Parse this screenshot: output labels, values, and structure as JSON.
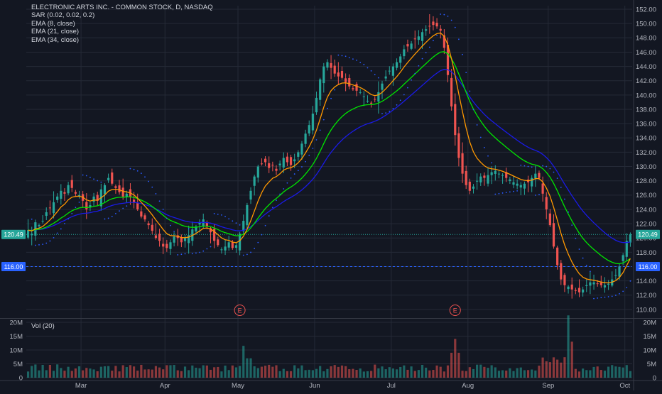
{
  "colors": {
    "background": "#131722",
    "grid": "#252a37",
    "up": "#26a69a",
    "down": "#ef5350",
    "ema8": "#ff9800",
    "ema21": "#00e600",
    "ema34": "#1a1ae6",
    "sar": "#2a5bff",
    "axis_text": "#b2b5be",
    "last_price_bg": "#26a69a",
    "level_line": "#2962ff"
  },
  "header": {
    "title": "ELECTRONIC ARTS INC. - COMMON STOCK, D, NASDAQ",
    "indicators": [
      "SAR (0.02, 0.02, 0.2)",
      "EMA (8, close)",
      "EMA (21, close)",
      "EMA (34, close)"
    ]
  },
  "volume_pane": {
    "label": "Vol (20)"
  },
  "events": [
    {
      "label": "E",
      "date": "May 3"
    },
    {
      "label": "E",
      "date": "Jul 28"
    }
  ],
  "chart_data": {
    "type": "candlestick",
    "title": "ELECTRONIC ARTS INC. - COMMON STOCK, D, NASDAQ",
    "x_ticks": [
      "Mar",
      "Apr",
      "May",
      "Jun",
      "Jul",
      "Aug",
      "Sep",
      "Oct"
    ],
    "price_axis": {
      "ticks": [
        "110.00",
        "112.00",
        "114.00",
        "116.00",
        "118.00",
        "120.00",
        "122.00",
        "124.00",
        "126.00",
        "128.00",
        "130.00",
        "132.00",
        "134.00",
        "136.00",
        "138.00",
        "140.00",
        "142.00",
        "144.00",
        "146.00",
        "148.00",
        "150.00",
        "152.00"
      ],
      "ylim": [
        109,
        152.5
      ],
      "last_price": "120.49",
      "horizontal_level": "116.00"
    },
    "volume_axis": {
      "ticks": [
        "0",
        "5M",
        "10M",
        "15M",
        "20M"
      ],
      "ylim": [
        0,
        20000000
      ]
    },
    "month_starts": [
      {
        "label": "Mar",
        "index": 15
      },
      {
        "label": "Apr",
        "index": 38
      },
      {
        "label": "May",
        "index": 58
      },
      {
        "label": "Jun",
        "index": 79
      },
      {
        "label": "Jul",
        "index": 100
      },
      {
        "label": "Aug",
        "index": 121
      },
      {
        "label": "Sep",
        "index": 143
      },
      {
        "label": "Oct",
        "index": 164
      }
    ],
    "close": [
      121.1,
      120.6,
      122.2,
      121.8,
      122.4,
      123.6,
      124.2,
      125.0,
      125.8,
      126.6,
      126.2,
      127.4,
      127.0,
      126.2,
      126.0,
      125.2,
      124.0,
      124.6,
      125.8,
      125.2,
      126.8,
      127.4,
      128.4,
      127.6,
      127.0,
      126.4,
      125.8,
      126.2,
      125.8,
      125.0,
      124.0,
      123.0,
      122.6,
      121.8,
      121.0,
      120.0,
      119.6,
      118.8,
      118.6,
      119.4,
      120.2,
      120.0,
      119.4,
      120.0,
      120.4,
      121.2,
      121.6,
      122.2,
      122.6,
      121.6,
      120.8,
      119.6,
      119.0,
      118.4,
      118.8,
      119.4,
      118.6,
      119.0,
      120.6,
      122.4,
      124.6,
      126.6,
      128.6,
      130.0,
      130.4,
      130.6,
      129.8,
      130.2,
      129.4,
      130.4,
      131.2,
      130.6,
      130.2,
      131.0,
      132.0,
      133.2,
      134.6,
      135.8,
      137.4,
      139.6,
      142.2,
      144.0,
      144.6,
      143.8,
      143.0,
      142.6,
      142.4,
      141.8,
      141.2,
      140.8,
      140.6,
      140.4,
      139.8,
      139.2,
      138.8,
      139.4,
      140.4,
      141.6,
      142.6,
      143.4,
      144.0,
      144.6,
      145.4,
      146.4,
      146.8,
      147.2,
      147.8,
      148.2,
      148.8,
      149.2,
      149.6,
      149.8,
      149.6,
      149.0,
      146.6,
      142.8,
      138.4,
      134.4,
      131.2,
      129.0,
      127.4,
      126.6,
      127.2,
      128.0,
      128.6,
      128.4,
      128.8,
      129.2,
      129.4,
      129.0,
      128.8,
      128.4,
      128.2,
      127.8,
      127.6,
      127.4,
      127.6,
      127.8,
      128.4,
      129.0,
      128.4,
      126.2,
      124.0,
      121.8,
      118.8,
      116.2,
      114.2,
      113.4,
      113.2,
      112.8,
      112.6,
      112.4,
      112.8,
      113.4,
      113.8,
      113.8,
      113.6,
      113.4,
      113.4,
      113.6,
      114.2,
      114.8,
      116.0,
      117.6,
      119.6,
      120.5
    ]
  }
}
